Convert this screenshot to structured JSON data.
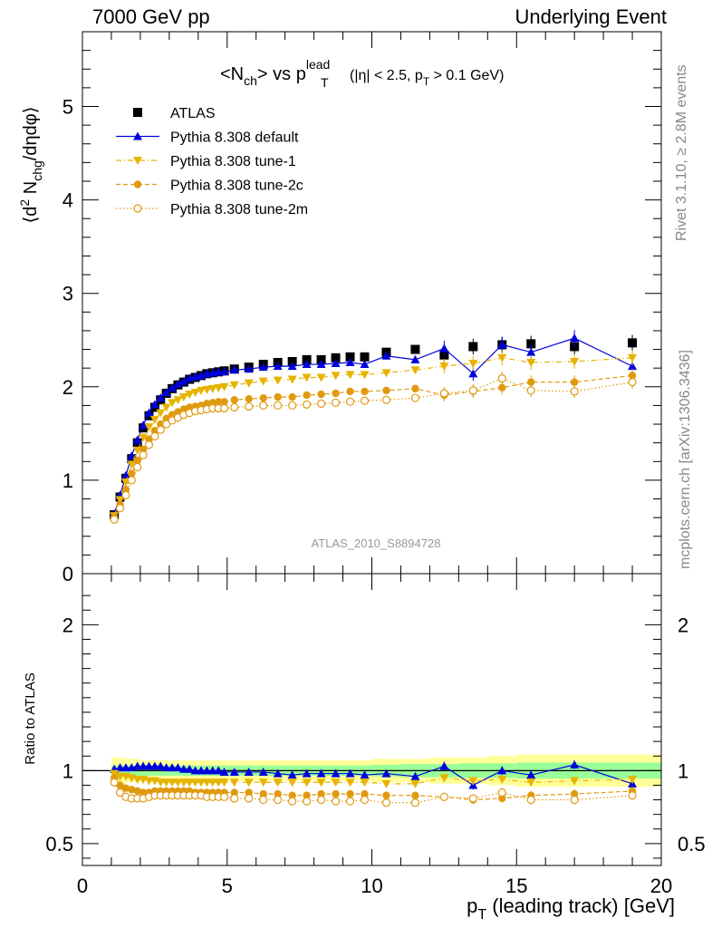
{
  "header": {
    "left": "7000 GeV pp",
    "right": "Underlying Event"
  },
  "side_labels": {
    "rivet": "Rivet 3.1.10, ≥ 2.8M events",
    "mcplots": "mcplots.cern.ch [arXiv:1306.3436]"
  },
  "watermark": "ATLAS_2010_S8894728",
  "colors": {
    "atlas": "#000000",
    "default": "#0000dd",
    "tune1": "#e6b400",
    "tune2c": "#e09a10",
    "tune2m": "#e09a10",
    "band_inner": "#99ff99",
    "band_outer": "#ffff99"
  },
  "chart_data": [
    {
      "type": "scatter",
      "title_parts": {
        "lhs": "<N",
        "lhs_sub": "ch",
        "mid": "> vs p",
        "sup": "lead",
        "sub": "T",
        "cuts_a": "(|η| < 2.5, p",
        "cuts_sub": "T",
        "cuts_b": " > 0.1 GeV)"
      },
      "ylabel_parts": {
        "a": "⟨d",
        "sup": "2",
        "b": " N",
        "sub": "chg",
        "c": "/dηdφ⟩"
      },
      "xlim": [
        0,
        20
      ],
      "ylim": [
        0,
        5.8
      ],
      "yticks": [
        0,
        1,
        2,
        3,
        4,
        5
      ],
      "legend_position": "top-left",
      "x": [
        1.1,
        1.3,
        1.5,
        1.7,
        1.9,
        2.1,
        2.3,
        2.5,
        2.7,
        2.9,
        3.1,
        3.3,
        3.5,
        3.7,
        3.9,
        4.1,
        4.3,
        4.5,
        4.7,
        4.9,
        5.25,
        5.75,
        6.25,
        6.75,
        7.25,
        7.75,
        8.25,
        8.75,
        9.25,
        9.75,
        10.5,
        11.5,
        12.5,
        13.5,
        14.5,
        15.5,
        17.0,
        19.0
      ],
      "series": [
        {
          "name": "ATLAS",
          "marker": "square-filled",
          "color_key": "atlas",
          "values": [
            0.63,
            0.82,
            1.02,
            1.23,
            1.4,
            1.56,
            1.69,
            1.78,
            1.86,
            1.93,
            1.98,
            2.02,
            2.05,
            2.08,
            2.1,
            2.12,
            2.14,
            2.15,
            2.16,
            2.17,
            2.19,
            2.21,
            2.24,
            2.26,
            2.27,
            2.29,
            2.29,
            2.31,
            2.32,
            2.32,
            2.37,
            2.4,
            2.34,
            2.43,
            2.45,
            2.46,
            2.43,
            2.47
          ]
        },
        {
          "name": "Pythia 8.308 default",
          "marker": "triangle-up-filled",
          "line": "solid",
          "color_key": "default",
          "values": [
            0.64,
            0.84,
            1.05,
            1.26,
            1.43,
            1.59,
            1.72,
            1.81,
            1.88,
            1.94,
            1.99,
            2.03,
            2.06,
            2.09,
            2.11,
            2.12,
            2.14,
            2.15,
            2.16,
            2.16,
            2.18,
            2.19,
            2.21,
            2.22,
            2.22,
            2.24,
            2.24,
            2.25,
            2.26,
            2.24,
            2.33,
            2.29,
            2.41,
            2.14,
            2.45,
            2.37,
            2.52,
            2.22
          ]
        },
        {
          "name": "Pythia 8.308 tune-1",
          "marker": "triangle-down-filled",
          "line": "dashdot",
          "color_key": "tune1",
          "values": [
            0.62,
            0.79,
            0.98,
            1.17,
            1.32,
            1.46,
            1.57,
            1.65,
            1.72,
            1.78,
            1.83,
            1.86,
            1.89,
            1.92,
            1.94,
            1.96,
            1.97,
            1.98,
            1.99,
            2.0,
            2.02,
            2.04,
            2.06,
            2.07,
            2.08,
            2.1,
            2.1,
            2.12,
            2.13,
            2.13,
            2.15,
            2.18,
            2.22,
            2.25,
            2.31,
            2.26,
            2.27,
            2.31
          ]
        },
        {
          "name": "Pythia 8.308 tune-2c",
          "marker": "circle-filled",
          "line": "dashed",
          "color_key": "tune2c",
          "values": [
            0.6,
            0.74,
            0.9,
            1.07,
            1.21,
            1.33,
            1.44,
            1.53,
            1.6,
            1.66,
            1.7,
            1.73,
            1.76,
            1.78,
            1.79,
            1.8,
            1.82,
            1.83,
            1.84,
            1.84,
            1.86,
            1.87,
            1.88,
            1.89,
            1.89,
            1.91,
            1.92,
            1.93,
            1.95,
            1.95,
            1.96,
            1.98,
            1.91,
            1.95,
            1.99,
            2.05,
            2.05,
            2.12
          ]
        },
        {
          "name": "Pythia 8.308 tune-2m",
          "marker": "circle-open",
          "line": "dotted",
          "color_key": "tune2m",
          "values": [
            0.58,
            0.7,
            0.84,
            1.0,
            1.14,
            1.27,
            1.38,
            1.47,
            1.54,
            1.6,
            1.64,
            1.67,
            1.7,
            1.72,
            1.74,
            1.75,
            1.76,
            1.77,
            1.77,
            1.77,
            1.78,
            1.79,
            1.8,
            1.8,
            1.8,
            1.81,
            1.82,
            1.83,
            1.84,
            1.85,
            1.86,
            1.88,
            1.93,
            1.96,
            2.09,
            1.96,
            1.95,
            2.05
          ]
        }
      ]
    },
    {
      "type": "line",
      "ylabel": "Ratio to ATLAS",
      "xlabel_parts": {
        "a": "p",
        "sub": "T",
        "b": " (leading track) [GeV]"
      },
      "xlim": [
        0,
        20
      ],
      "ylim": [
        0.35,
        2.35
      ],
      "xticks": [
        0,
        5,
        10,
        15,
        20
      ],
      "yticks_left": [
        0.5,
        1,
        2
      ],
      "yticks_right": [
        0.5,
        1,
        2
      ],
      "reference_line": 1,
      "band_edges": [
        1,
        1.5,
        2,
        2.5,
        3,
        4,
        5,
        6,
        7,
        8,
        9,
        10,
        11,
        12,
        13,
        14,
        15,
        16,
        18,
        20
      ],
      "band_inner_halfwidth": [
        0.035,
        0.035,
        0.035,
        0.035,
        0.035,
        0.035,
        0.035,
        0.035,
        0.035,
        0.035,
        0.035,
        0.04,
        0.045,
        0.045,
        0.05,
        0.05,
        0.055,
        0.055,
        0.055
      ],
      "band_outer_halfwidth": [
        0.09,
        0.08,
        0.07,
        0.07,
        0.07,
        0.07,
        0.07,
        0.07,
        0.07,
        0.07,
        0.07,
        0.08,
        0.08,
        0.09,
        0.09,
        0.1,
        0.11,
        0.11,
        0.11
      ],
      "series": [
        {
          "name": "Pythia 8.308 default",
          "color_key": "default",
          "values": [
            1.01,
            1.02,
            1.02,
            1.02,
            1.03,
            1.03,
            1.03,
            1.03,
            1.03,
            1.02,
            1.02,
            1.02,
            1.01,
            1.01,
            1.0,
            1.0,
            1.0,
            1.0,
            1.0,
            0.99,
            0.99,
            0.99,
            0.99,
            0.98,
            0.97,
            0.98,
            0.98,
            0.98,
            0.98,
            0.97,
            0.98,
            0.96,
            1.03,
            0.9,
            1.0,
            0.97,
            1.04,
            0.91
          ]
        },
        {
          "name": "Pythia 8.308 tune-1",
          "color_key": "tune1",
          "values": [
            0.98,
            0.96,
            0.96,
            0.95,
            0.94,
            0.94,
            0.93,
            0.93,
            0.92,
            0.92,
            0.92,
            0.92,
            0.92,
            0.92,
            0.92,
            0.92,
            0.92,
            0.92,
            0.92,
            0.92,
            0.92,
            0.92,
            0.92,
            0.92,
            0.92,
            0.92,
            0.92,
            0.92,
            0.92,
            0.92,
            0.91,
            0.91,
            0.95,
            0.93,
            0.94,
            0.92,
            0.93,
            0.94
          ]
        },
        {
          "name": "Pythia 8.308 tune-2c",
          "color_key": "tune2c",
          "values": [
            0.95,
            0.9,
            0.88,
            0.87,
            0.86,
            0.85,
            0.85,
            0.86,
            0.86,
            0.86,
            0.86,
            0.86,
            0.86,
            0.86,
            0.85,
            0.85,
            0.85,
            0.85,
            0.85,
            0.85,
            0.85,
            0.85,
            0.84,
            0.84,
            0.83,
            0.83,
            0.84,
            0.84,
            0.84,
            0.84,
            0.83,
            0.83,
            0.82,
            0.8,
            0.81,
            0.83,
            0.84,
            0.86
          ]
        },
        {
          "name": "Pythia 8.308 tune-2m",
          "color_key": "tune2m",
          "values": [
            0.92,
            0.85,
            0.82,
            0.81,
            0.81,
            0.81,
            0.82,
            0.83,
            0.83,
            0.83,
            0.83,
            0.83,
            0.83,
            0.83,
            0.83,
            0.83,
            0.82,
            0.82,
            0.82,
            0.82,
            0.81,
            0.81,
            0.8,
            0.8,
            0.79,
            0.79,
            0.8,
            0.79,
            0.79,
            0.8,
            0.78,
            0.78,
            0.82,
            0.81,
            0.85,
            0.8,
            0.8,
            0.83
          ]
        }
      ]
    }
  ]
}
